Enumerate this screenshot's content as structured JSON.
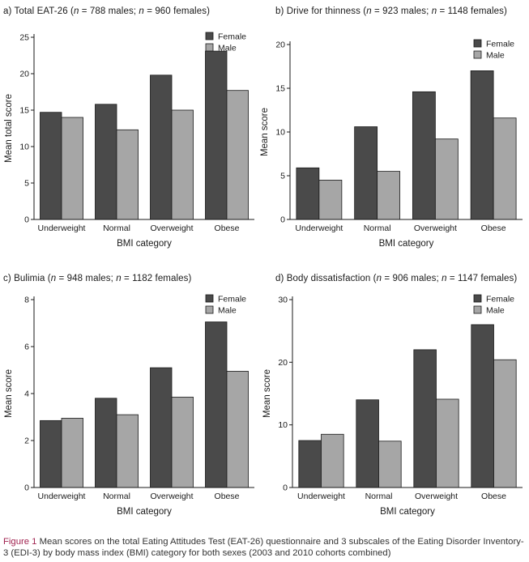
{
  "caption": {
    "label": "Figure 1",
    "text": "Mean scores on the total Eating Attitudes Test (EAT-26) questionnaire and 3 subscales of the Eating Disorder Inventory-3 (EDI-3) by body mass index (BMI) category for both sexes (2003 and 2010 cohorts combined)"
  },
  "colors": {
    "female": "#4a4a4a",
    "male": "#a6a6a6",
    "outline": "#1a1a1a",
    "caption_label": "#a0224f"
  },
  "chart_data": [
    {
      "type": "bar",
      "title_prefix": "a) Total EAT-26 (",
      "title_n_males": "= 788 males; ",
      "title_n_females": "= 960 females)",
      "title_n_symbol": "n",
      "categories": [
        "Underweight",
        "Normal",
        "Overweight",
        "Obese"
      ],
      "series": [
        {
          "name": "Female",
          "values": [
            14.7,
            15.8,
            19.8,
            23.1
          ]
        },
        {
          "name": "Male",
          "values": [
            14.0,
            12.3,
            15.0,
            17.7
          ]
        }
      ],
      "xlabel": "BMI category",
      "ylabel": "Mean total score",
      "ylim": [
        0,
        25
      ],
      "yticks": [
        0,
        5,
        10,
        15,
        20,
        25
      ],
      "legend_position": "top-right",
      "grid": false
    },
    {
      "type": "bar",
      "title_prefix": "b) Drive for thinness (",
      "title_n_males": "= 923 males; ",
      "title_n_females": "= 1148 females)",
      "title_n_symbol": "n",
      "categories": [
        "Underweight",
        "Normal",
        "Overweight",
        "Obese"
      ],
      "series": [
        {
          "name": "Female",
          "values": [
            5.9,
            10.6,
            14.6,
            17.0
          ]
        },
        {
          "name": "Male",
          "values": [
            4.5,
            5.5,
            9.2,
            11.6
          ]
        }
      ],
      "xlabel": "BMI category",
      "ylabel": "Mean score",
      "ylim": [
        0,
        20
      ],
      "yticks": [
        0,
        5,
        10,
        15,
        20
      ],
      "legend_position": "top-right",
      "grid": false
    },
    {
      "type": "bar",
      "title_prefix": "c) Bulimia (",
      "title_n_males": "= 948 males; ",
      "title_n_females": "= 1182 females)",
      "title_n_symbol": "n",
      "categories": [
        "Underweight",
        "Normal",
        "Overweight",
        "Obese"
      ],
      "series": [
        {
          "name": "Female",
          "values": [
            2.85,
            3.8,
            5.1,
            7.05
          ]
        },
        {
          "name": "Male",
          "values": [
            2.95,
            3.1,
            3.85,
            4.95
          ]
        }
      ],
      "xlabel": "BMI category",
      "ylabel": "Mean score",
      "ylim": [
        0,
        8
      ],
      "yticks": [
        0,
        2,
        4,
        6,
        8
      ],
      "legend_position": "top-right",
      "grid": false
    },
    {
      "type": "bar",
      "title_prefix": "d) Body dissatisfaction (",
      "title_n_males": "= 906 males; ",
      "title_n_females": "= 1147 females)",
      "title_n_symbol": "n",
      "categories": [
        "Underweight",
        "Normal",
        "Overweight",
        "Obese"
      ],
      "series": [
        {
          "name": "Female",
          "values": [
            7.5,
            14.0,
            22.0,
            26.0
          ]
        },
        {
          "name": "Male",
          "values": [
            8.5,
            7.4,
            14.1,
            20.4
          ]
        }
      ],
      "xlabel": "BMI category",
      "ylabel": "Mean score",
      "ylim": [
        0,
        30
      ],
      "yticks": [
        0,
        10,
        20,
        30
      ],
      "legend_position": "top-right",
      "grid": false
    }
  ]
}
